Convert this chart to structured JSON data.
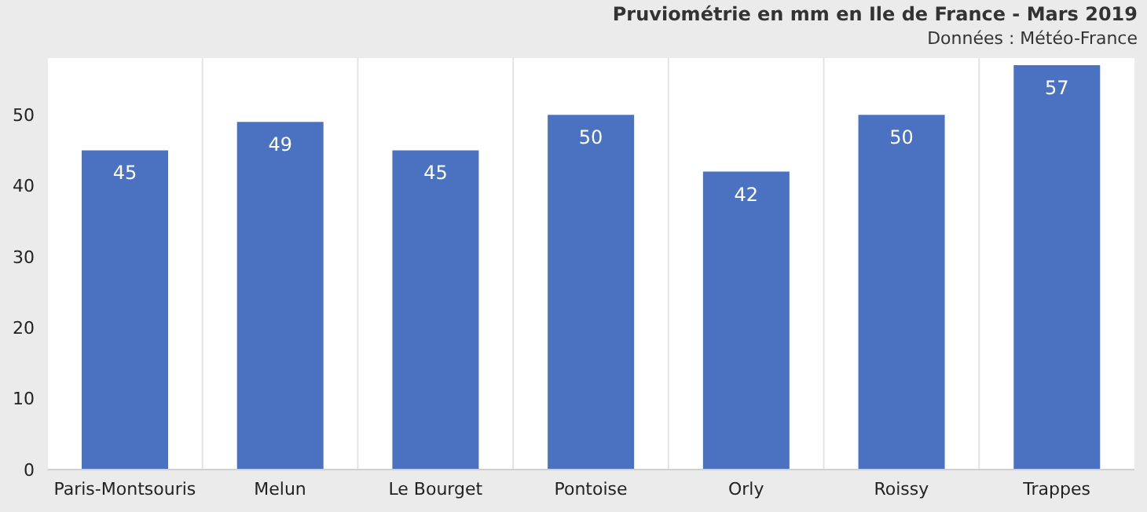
{
  "chart_data": {
    "type": "bar",
    "title": "Pruviométrie en mm en Ile de France - Mars 2019",
    "subtitle": "Données : Météo-France",
    "categories": [
      "Paris-Montsouris",
      "Melun",
      "Le Bourget",
      "Pontoise",
      "Orly",
      "Roissy",
      "Trappes"
    ],
    "values": [
      45,
      49,
      45,
      50,
      42,
      50,
      57
    ],
    "color": "#4a72c0",
    "data_labels": true,
    "ylim": [
      0,
      58
    ],
    "yticks": [
      0,
      10,
      20,
      30,
      40,
      50
    ],
    "grid": "x"
  }
}
